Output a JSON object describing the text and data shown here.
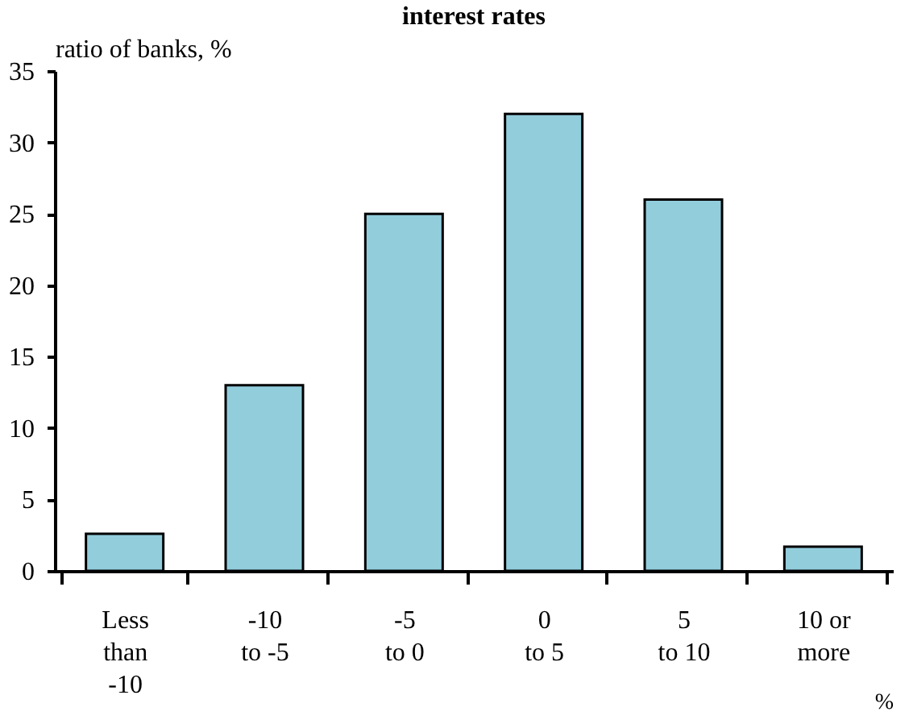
{
  "chart_data": {
    "type": "bar",
    "title": "interest rates",
    "ylabel": "ratio of banks, %",
    "xlabel": "%",
    "categories": [
      "Less\nthan\n-10",
      "-10\nto -5",
      "-5\nto 0",
      "0\nto 5",
      "5\nto 10",
      "10 or\nmore"
    ],
    "values": [
      2.6,
      13,
      25,
      32,
      26,
      1.7
    ],
    "color": "#92cddc",
    "ylim": [
      0,
      35
    ],
    "yticks": [
      0,
      5,
      10,
      15,
      20,
      25,
      30,
      35
    ],
    "grid": false
  }
}
